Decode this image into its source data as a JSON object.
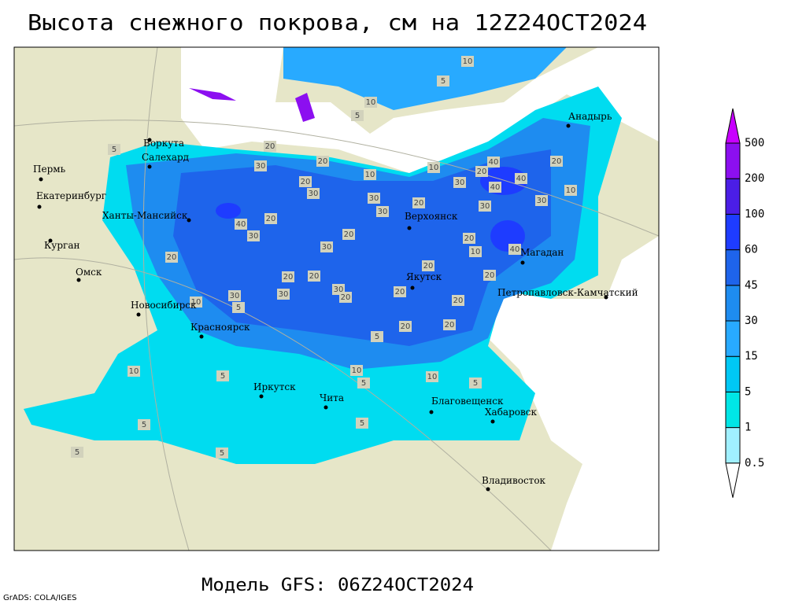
{
  "header": {
    "title": "Высота снежного покрова, см на 12Z24OCT2024"
  },
  "footer": {
    "model": "Модель GFS: 06Z24OCT2024",
    "credit": "GrADS: COLA/IGES"
  },
  "legend": {
    "levels": [
      0.5,
      1,
      5,
      15,
      30,
      45,
      60,
      100,
      200,
      500
    ],
    "colors": [
      "#ffffff",
      "#a0f0ff",
      "#00e6e6",
      "#00c8f5",
      "#28aaff",
      "#1e8cf0",
      "#1e64eb",
      "#1e3cff",
      "#4b1ee6",
      "#8c0ff0",
      "#c800ff"
    ]
  },
  "cities": [
    "Воркута",
    "Салехард",
    "Пермь",
    "Екатеринбург",
    "Ханты-Мансийск",
    "Курган",
    "Омск",
    "Новосибирск",
    "Красноярск",
    "Иркутск",
    "Чита",
    "Благовещенск",
    "Хабаровск",
    "Владивосток",
    "Якутск",
    "Верхоянск",
    "Магадан",
    "Петропавловск-Камчатский",
    "Анадырь"
  ],
  "contour_labels": [
    10,
    5,
    10,
    5,
    20,
    30,
    20,
    20,
    30,
    10,
    10,
    30,
    20,
    40,
    40,
    40,
    30,
    20,
    10,
    30,
    30,
    20,
    30,
    20,
    40,
    30,
    20,
    30,
    20,
    10,
    40,
    20,
    20,
    20,
    20,
    20,
    30,
    30,
    30,
    20,
    20,
    20,
    10,
    5,
    20,
    20,
    5,
    10,
    10,
    10,
    5,
    5,
    5,
    5,
    5,
    5,
    5,
    5
  ]
}
